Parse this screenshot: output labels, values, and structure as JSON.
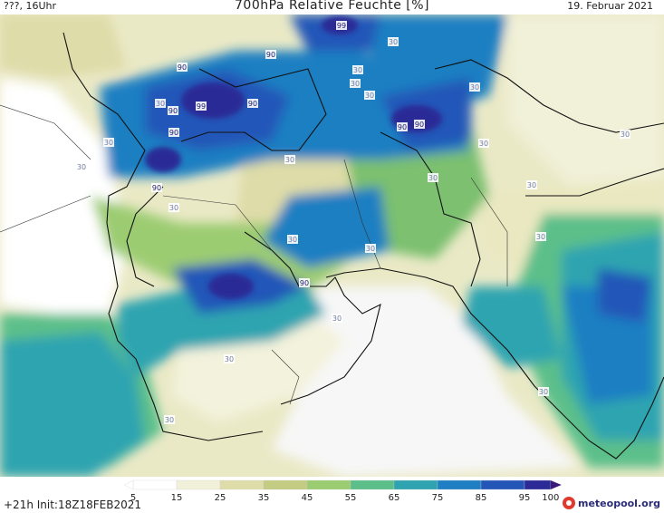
{
  "header": {
    "left": "???, 16Uhr",
    "title": "700hPa Relative Feuchte [%]",
    "right": "19. Februar 2021"
  },
  "footer": {
    "left": "+21h Init:18Z18FEB2021",
    "logo_text": "meteopool.org"
  },
  "legend": {
    "ticks": [
      "5",
      "15",
      "25",
      "35",
      "45",
      "55",
      "65",
      "75",
      "85",
      "95",
      "100"
    ],
    "colors": [
      "#ffffff",
      "#f1f0d8",
      "#dedca8",
      "#c3cc82",
      "#9ccc72",
      "#5cbf8a",
      "#2fa4b0",
      "#1f7fc2",
      "#2456b8",
      "#2c2a96",
      "#3a1a78"
    ]
  },
  "contour_labels": [
    "99",
    "30",
    "90",
    "90",
    "30",
    "30",
    "30",
    "90",
    "99",
    "90",
    "30",
    "90",
    "90",
    "30",
    "30",
    "30",
    "90",
    "30",
    "30",
    "30",
    "30",
    "90",
    "30",
    "30",
    "90",
    "30",
    "30",
    "30",
    "30",
    "30",
    "30",
    "30"
  ]
}
